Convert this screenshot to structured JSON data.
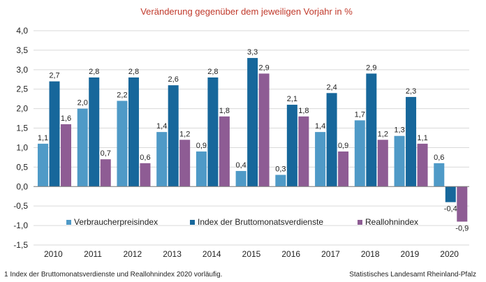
{
  "chart_data": {
    "type": "bar",
    "title": "Veränderung  gegenüber  dem jeweiligen Vorjahr in %",
    "categories": [
      "2010",
      "2011",
      "2012",
      "2013",
      "2014",
      "2015",
      "2016",
      "2017",
      "2018",
      "2019",
      "2020"
    ],
    "ylim": [
      -1.5,
      4.0
    ],
    "yticks": [
      4.0,
      3.5,
      3.0,
      2.5,
      2.0,
      1.5,
      1.0,
      0.5,
      0.0,
      -0.5,
      -1.0,
      -1.5
    ],
    "ytick_labels": [
      "4,0",
      "3,5",
      "3,0",
      "2,5",
      "2,0",
      "1,5",
      "1,0",
      "0,5",
      "0,0",
      "-0,5",
      "-1,0",
      "-1,5"
    ],
    "grid": true,
    "legend_position": "lower-center",
    "series": [
      {
        "name": "Verbraucherpreisindex",
        "color": "#4f9ac7",
        "values": [
          1.1,
          2.0,
          2.2,
          1.4,
          0.9,
          0.4,
          0.3,
          1.4,
          1.7,
          1.3,
          0.6
        ],
        "labels": [
          "1,1",
          "2,0",
          "2,2",
          "1,4",
          "0,9",
          "0,4",
          "0,3",
          "1,4",
          "1,7",
          "1,3",
          "0,6"
        ]
      },
      {
        "name": "Index der Bruttomonatsverdienste",
        "color": "#17679b",
        "values": [
          2.7,
          2.8,
          2.8,
          2.6,
          2.8,
          3.3,
          2.1,
          2.4,
          2.9,
          2.3,
          -0.4
        ],
        "labels": [
          "2,7",
          "2,8",
          "2,8",
          "2,6",
          "2,8",
          "3,3",
          "2,1",
          "2,4",
          "2,9",
          "2,3",
          "-0,4"
        ]
      },
      {
        "name": "Reallohnindex",
        "color": "#8e5c94",
        "values": [
          1.6,
          0.7,
          0.6,
          1.2,
          1.8,
          2.9,
          1.8,
          0.9,
          1.2,
          1.1,
          -0.9
        ],
        "labels": [
          "1,6",
          "0,7",
          "0,6",
          "1,2",
          "1,8",
          "2,9",
          "1,8",
          "0,9",
          "1,2",
          "1,1",
          "-0,9"
        ]
      }
    ]
  },
  "footer": {
    "note": "1 Index der Bruttomonatsverdienste  und Reallohnindex  2020 vorläufig.",
    "source": "Statistisches Landesamt Rheinland-Pfalz"
  }
}
